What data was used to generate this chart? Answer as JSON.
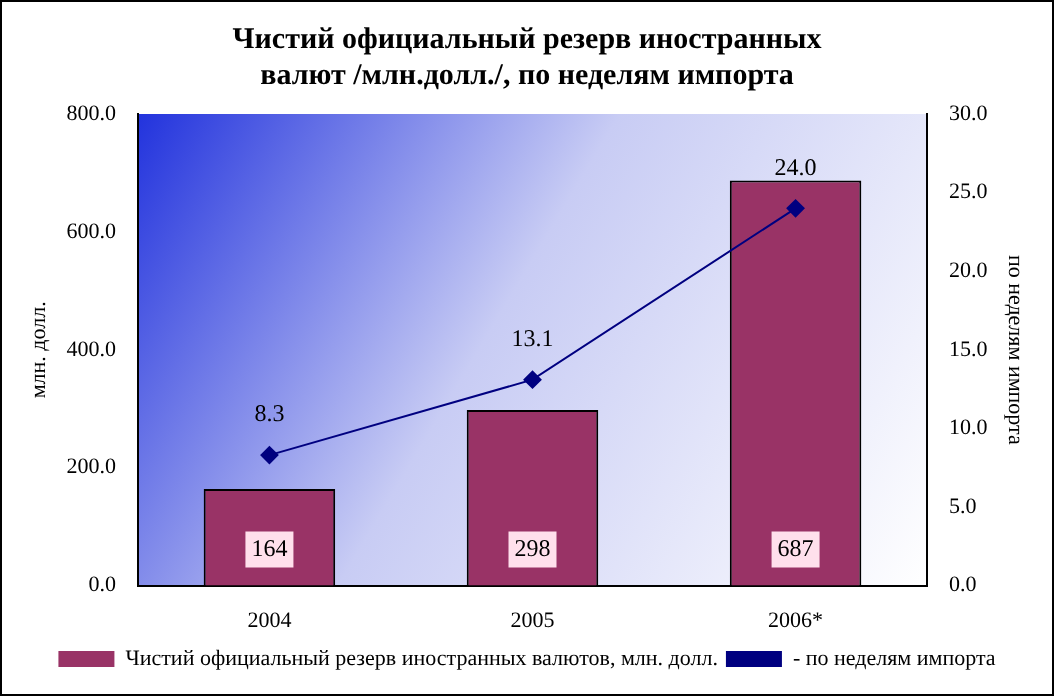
{
  "chart_data": {
    "type": "bar",
    "title": "Чистий официальный резерв иностранных валют /млн.долл./, по неделям импорта",
    "ylabel": "млн. долл.",
    "y2label": "по неделям импорта",
    "categories": [
      "2004",
      "2005",
      "2006*"
    ],
    "series": [
      {
        "name": "Чистий официальный резерв иностранных валютов, млн. долл.",
        "color": "#993366",
        "values": [
          164,
          298,
          687
        ],
        "value_labels": [
          "164",
          "298",
          "687"
        ]
      },
      {
        "name": "- по неделям импорта",
        "type": "line",
        "axis": "y2",
        "color": "#000080",
        "values": [
          8.3,
          13.1,
          24.0
        ],
        "value_labels": [
          "8.3",
          "13.1",
          "24.0"
        ],
        "marker": "diamond"
      }
    ],
    "ylim": [
      0,
      800
    ],
    "yticks": [
      {
        "value": 0,
        "label": "0.0"
      },
      {
        "value": 200,
        "label": "200.0"
      },
      {
        "value": 400,
        "label": "400.0"
      },
      {
        "value": 600,
        "label": "600.0"
      },
      {
        "value": 800,
        "label": "800.0"
      }
    ],
    "y2lim": [
      0,
      30
    ],
    "y2ticks": [
      {
        "value": 0,
        "label": "0.0"
      },
      {
        "value": 5,
        "label": "5.0"
      },
      {
        "value": 10,
        "label": "10.0"
      },
      {
        "value": 15,
        "label": "15.0"
      },
      {
        "value": 20,
        "label": "20.0"
      },
      {
        "value": 25,
        "label": "25.0"
      },
      {
        "value": 30,
        "label": "30.0"
      }
    ],
    "grid": false,
    "legend": "bottom"
  }
}
